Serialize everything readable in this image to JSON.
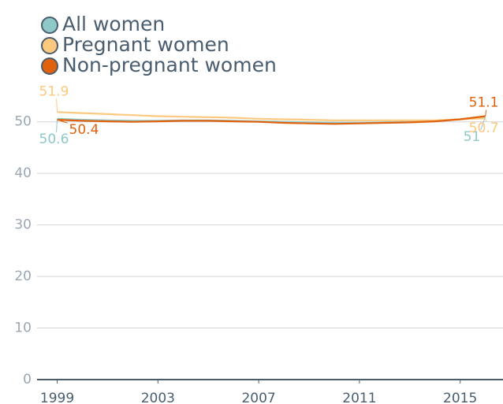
{
  "chart_data": {
    "type": "line",
    "x": [
      1999,
      2000,
      2001,
      2002,
      2003,
      2004,
      2005,
      2006,
      2007,
      2008,
      2009,
      2010,
      2011,
      2012,
      2013,
      2014,
      2015,
      2016
    ],
    "xlim": [
      1998.2,
      2016.7
    ],
    "xticks": [
      1999,
      2003,
      2007,
      2011,
      2015
    ],
    "ylim": [
      0,
      55
    ],
    "yticks": [
      0,
      10,
      20,
      30,
      40,
      50
    ],
    "grid": true,
    "legend": "top-left",
    "series": [
      {
        "name": "All women",
        "color": "#8fc8c8",
        "values": [
          50.6,
          50.4,
          50.3,
          50.2,
          50.2,
          50.3,
          50.3,
          50.2,
          50.1,
          50.0,
          49.9,
          49.8,
          49.8,
          49.9,
          50.0,
          50.2,
          50.5,
          51
        ]
      },
      {
        "name": "Pregnant women",
        "color": "#fdc97f",
        "values": [
          51.9,
          51.7,
          51.5,
          51.3,
          51.1,
          51.0,
          50.9,
          50.8,
          50.6,
          50.5,
          50.4,
          50.3,
          50.3,
          50.3,
          50.3,
          50.3,
          50.5,
          50.7
        ]
      },
      {
        "name": "Non-pregnant women",
        "color": "#e0620d",
        "values": [
          50.4,
          50.2,
          50.1,
          50.0,
          50.1,
          50.2,
          50.2,
          50.1,
          50.0,
          49.8,
          49.7,
          49.6,
          49.7,
          49.8,
          49.9,
          50.1,
          50.5,
          51.1
        ]
      }
    ]
  }
}
